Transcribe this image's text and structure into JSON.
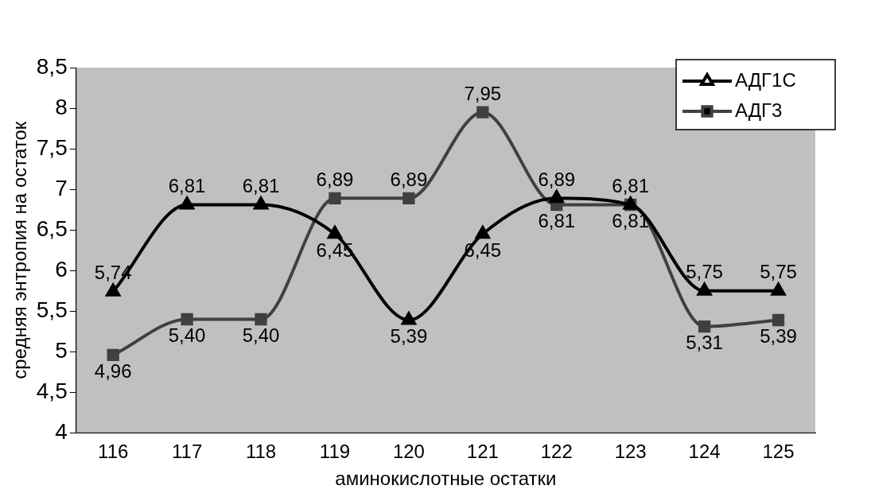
{
  "chart_data": {
    "type": "line",
    "xlabel": "аминокислотные остатки",
    "ylabel": "средняя энтропия на остаток",
    "categories": [
      "116",
      "117",
      "118",
      "119",
      "120",
      "121",
      "122",
      "123",
      "124",
      "125"
    ],
    "series": [
      {
        "name": "АДГ1С",
        "color": "#000000",
        "marker": "triangle",
        "values": [
          5.74,
          6.81,
          6.81,
          6.45,
          5.39,
          6.45,
          6.89,
          6.81,
          5.75,
          5.75
        ],
        "value_labels": [
          "5,74",
          "6,81",
          "6,81",
          "6,45",
          "5,39",
          "6,45",
          "6,89",
          "6,81",
          "5,75",
          "5,75"
        ]
      },
      {
        "name": "АДГ3",
        "color": "#404040",
        "marker": "square",
        "values": [
          4.96,
          5.4,
          5.4,
          6.89,
          6.89,
          7.95,
          6.81,
          6.81,
          5.31,
          5.39
        ],
        "value_labels": [
          "4,96",
          "5,40",
          "5,40",
          "6,89",
          "6,89",
          "7,95",
          "6,81",
          "6,81",
          "5,31",
          "5,39"
        ]
      }
    ],
    "ylim": [
      4,
      8.5
    ],
    "yticks": [
      4,
      {
        "value": 4.5,
        "label": "4,5"
      },
      5,
      {
        "value": 5.5,
        "label": "5,5"
      },
      6,
      {
        "value": 6.5,
        "label": "6,5"
      },
      7,
      {
        "value": 7.5,
        "label": "7,5"
      },
      8,
      {
        "value": 8.5,
        "label": "8,5"
      }
    ],
    "grid": false,
    "legend": "top right"
  }
}
